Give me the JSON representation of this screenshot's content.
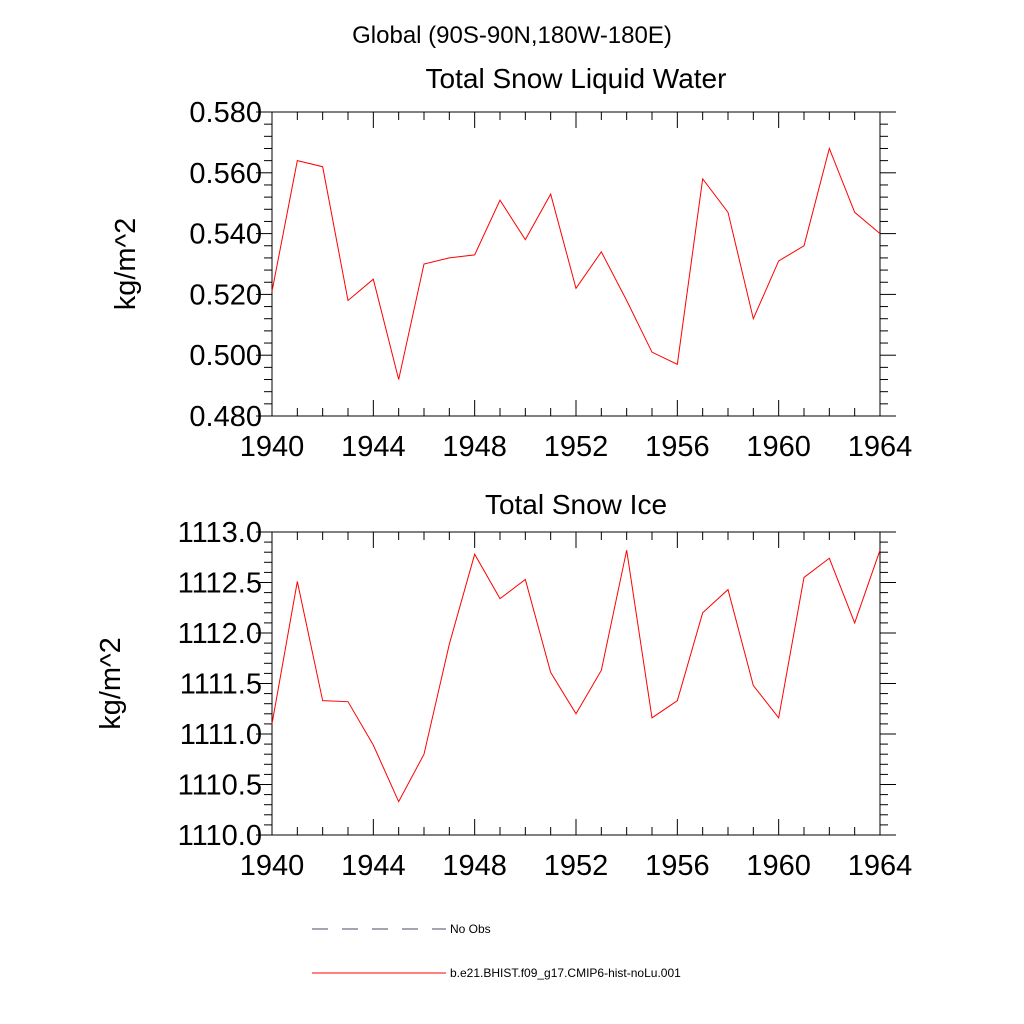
{
  "figure": {
    "title": "Global (90S-90N,180W-180E)"
  },
  "chart_data": [
    {
      "type": "line",
      "title": "Total Snow Liquid Water",
      "xlabel": "",
      "ylabel": "kg/m^2",
      "xlim": [
        1940,
        1964
      ],
      "ylim": [
        0.48,
        0.58
      ],
      "xticks": [
        "1940",
        "1944",
        "1948",
        "1952",
        "1956",
        "1960",
        "1964"
      ],
      "yticks": [
        "0.480",
        "0.500",
        "0.520",
        "0.540",
        "0.560",
        "0.580"
      ],
      "x": [
        1940,
        1941,
        1942,
        1943,
        1944,
        1945,
        1946,
        1947,
        1948,
        1949,
        1950,
        1951,
        1952,
        1953,
        1954,
        1955,
        1956,
        1957,
        1958,
        1959,
        1960,
        1961,
        1962,
        1963,
        1964
      ],
      "series": [
        {
          "name": "b.e21.BHIST.f09_g17.CMIP6-hist-noLu.001",
          "color": "#ff0000",
          "values": [
            0.521,
            0.564,
            0.562,
            0.518,
            0.525,
            0.492,
            0.53,
            0.532,
            0.533,
            0.551,
            0.538,
            0.553,
            0.522,
            0.534,
            0.518,
            0.501,
            0.497,
            0.558,
            0.547,
            0.512,
            0.531,
            0.536,
            0.568,
            0.547,
            0.54
          ]
        }
      ]
    },
    {
      "type": "line",
      "title": "Total Snow Ice",
      "xlabel": "",
      "ylabel": "kg/m^2",
      "xlim": [
        1940,
        1964
      ],
      "ylim": [
        1110.0,
        1113.0
      ],
      "xticks": [
        "1940",
        "1944",
        "1948",
        "1952",
        "1956",
        "1960",
        "1964"
      ],
      "yticks": [
        "1110.0",
        "1110.5",
        "1111.0",
        "1111.5",
        "1112.0",
        "1112.5",
        "1113.0"
      ],
      "x": [
        1940,
        1941,
        1942,
        1943,
        1944,
        1945,
        1946,
        1947,
        1948,
        1949,
        1950,
        1951,
        1952,
        1953,
        1954,
        1955,
        1956,
        1957,
        1958,
        1959,
        1960,
        1961,
        1962,
        1963,
        1964
      ],
      "series": [
        {
          "name": "b.e21.BHIST.f09_g17.CMIP6-hist-noLu.001",
          "color": "#ff0000",
          "values": [
            1111.1,
            1112.51,
            1111.33,
            1111.32,
            1110.89,
            1110.33,
            1110.8,
            1111.89,
            1112.78,
            1112.34,
            1112.53,
            1111.61,
            1111.2,
            1111.63,
            1112.82,
            1111.16,
            1111.33,
            1112.2,
            1112.43,
            1111.48,
            1111.16,
            1112.55,
            1112.74,
            1112.1,
            1112.82
          ]
        }
      ]
    }
  ],
  "legend": {
    "placement": "bottom",
    "entries": [
      {
        "label": "No Obs",
        "style": "dashed",
        "color": "#4a4a66"
      },
      {
        "label": "b.e21.BHIST.f09_g17.CMIP6-hist-noLu.001",
        "style": "solid",
        "color": "#ff0000"
      }
    ]
  }
}
